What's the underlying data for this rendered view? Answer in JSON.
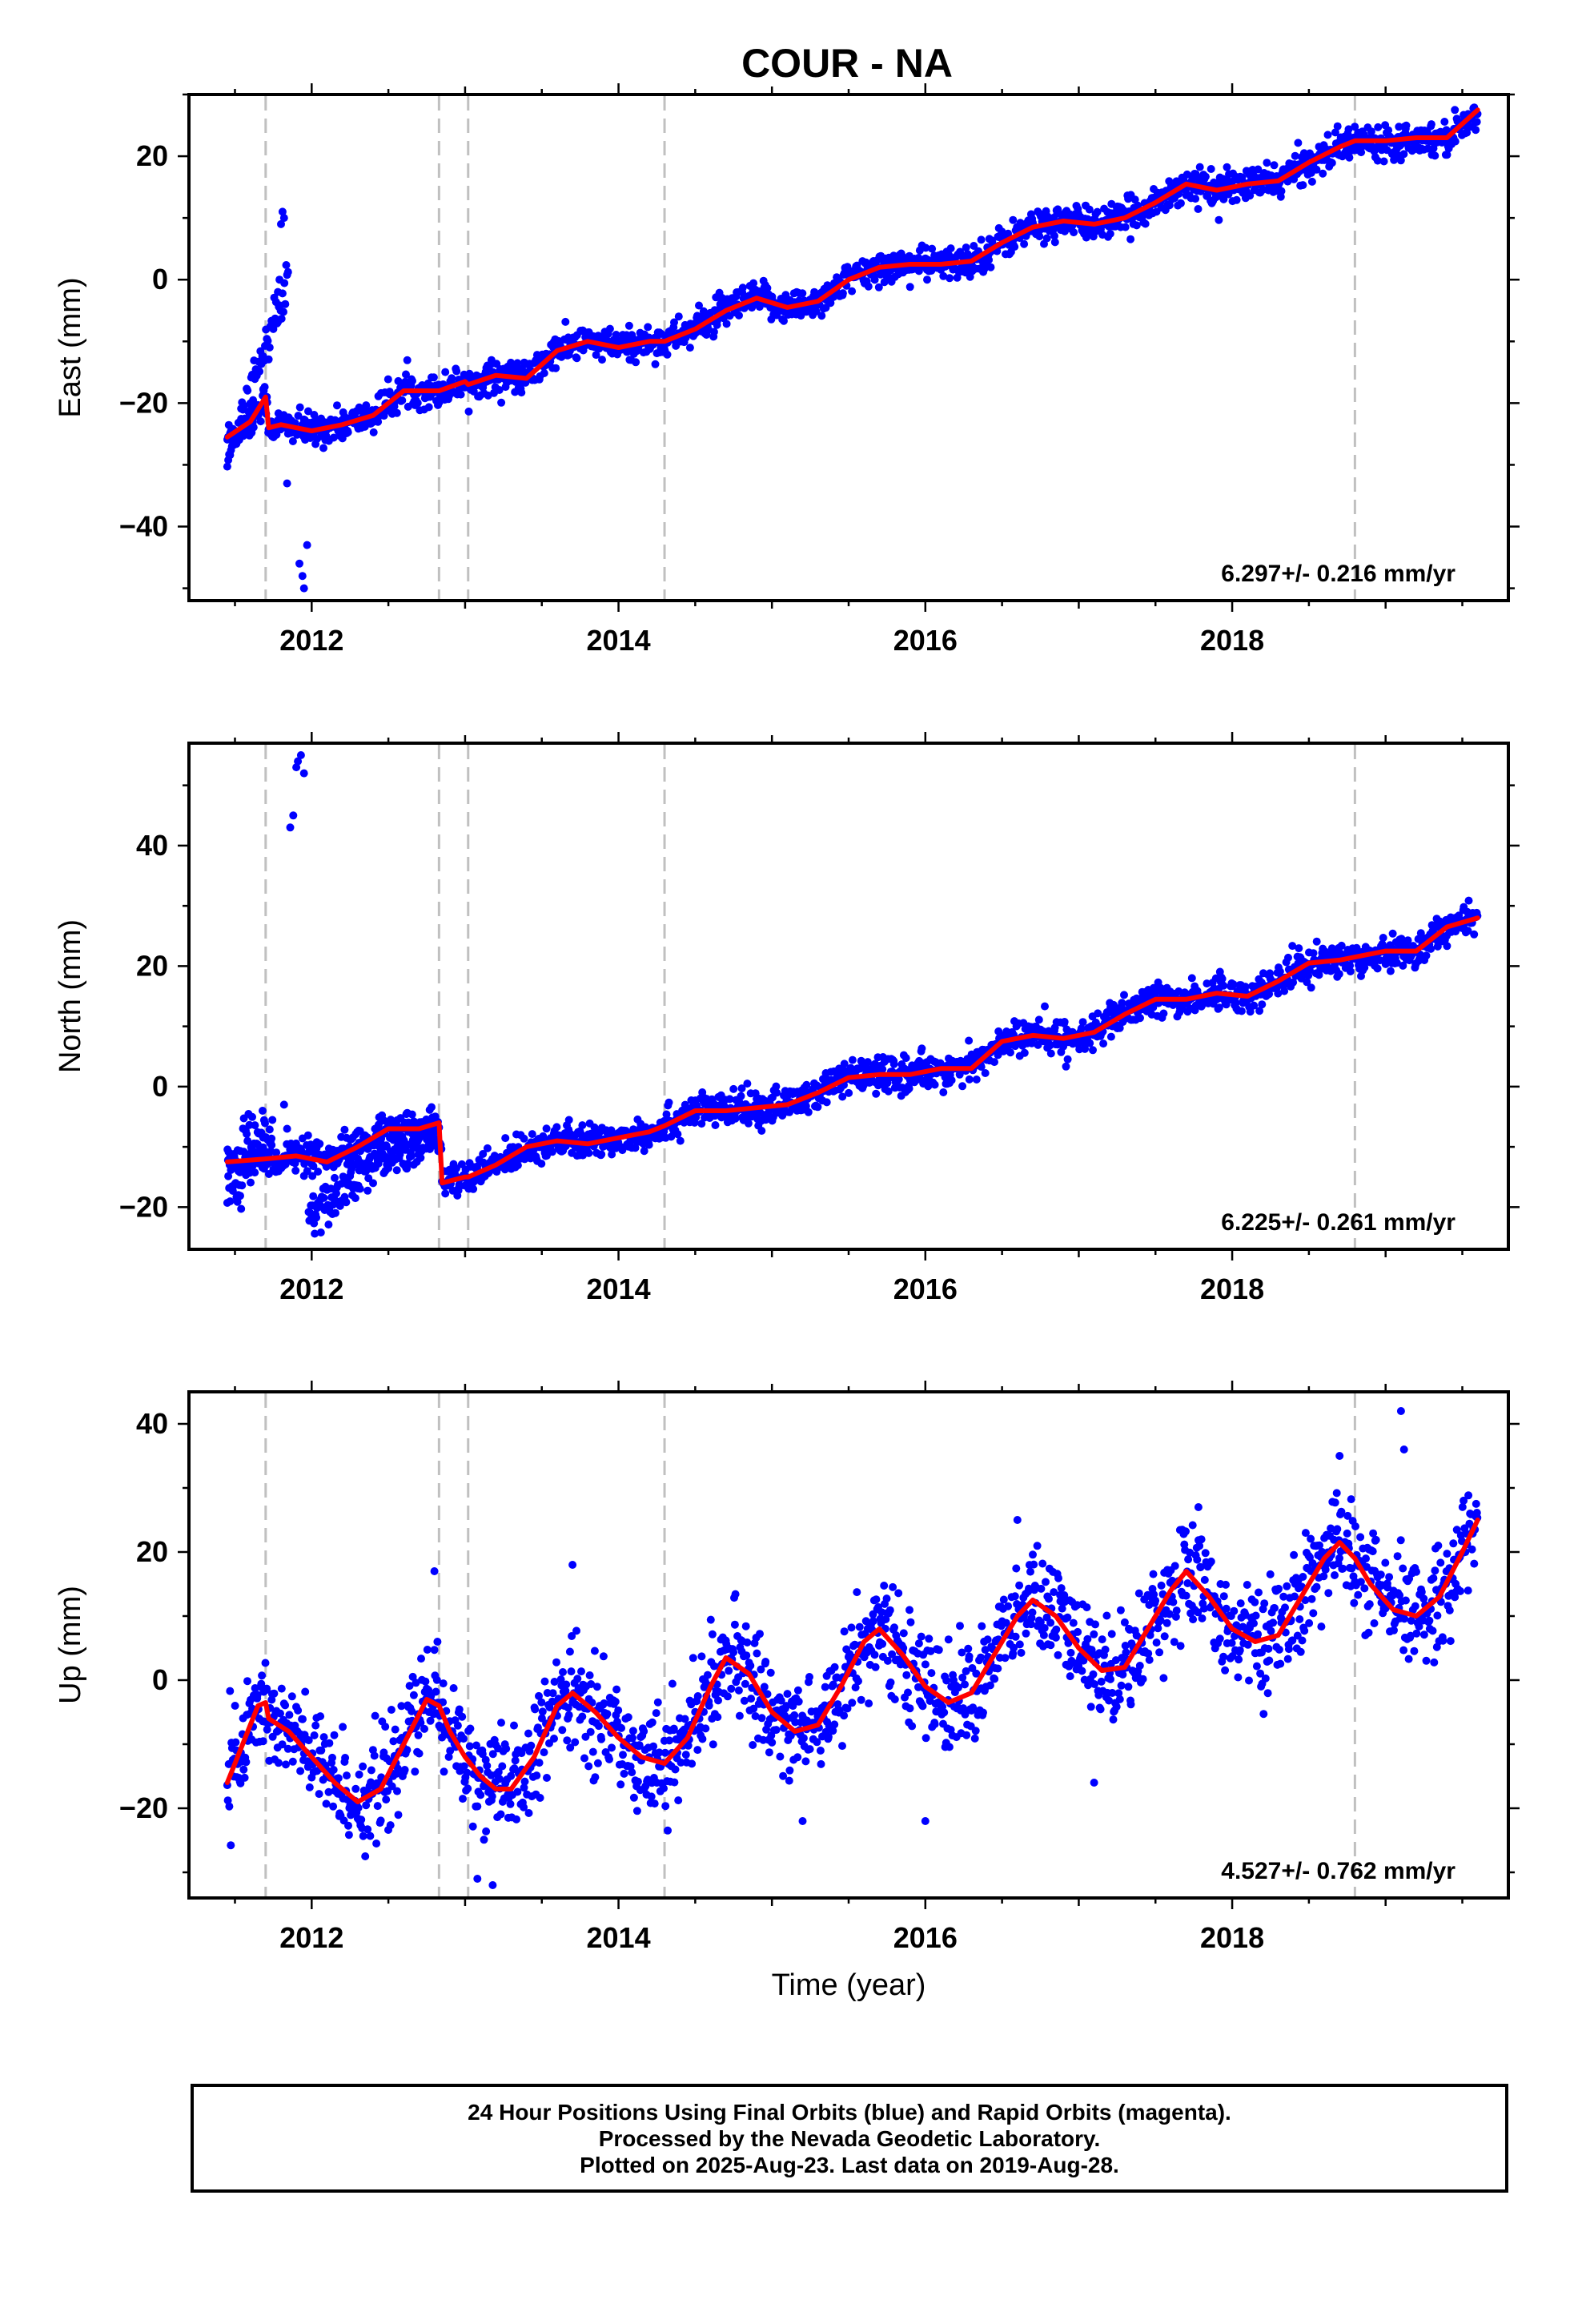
{
  "title": "COUR - NA",
  "xlabel": "Time (year)",
  "footer": {
    "line1": "24 Hour Positions Using Final Orbits (blue) and Rapid Orbits (magenta).",
    "line2": "Processed by the Nevada Geodetic Laboratory.",
    "line3": "Plotted on 2025-Aug-23. Last data on 2019-Aug-28."
  },
  "colors": {
    "data_points": "#0000ff",
    "model_fit": "#ff0000",
    "event_lines": "#c0c0c0",
    "frame": "#000000"
  },
  "chart_data": [
    {
      "type": "scatter",
      "component": "east",
      "ylabel": "East (mm)",
      "rate_label": "6.297+/- 0.216 mm/yr",
      "xlim": [
        2011.2,
        2019.8
      ],
      "ylim": [
        -52,
        30
      ],
      "xticks": [
        2012,
        2014,
        2016,
        2018
      ],
      "yticks": [
        -40,
        -20,
        0,
        20
      ],
      "event_lines_x": [
        2011.7,
        2012.83,
        2013.02,
        2014.3,
        2018.8
      ],
      "model_fit": {
        "x": [
          2011.45,
          2011.6,
          2011.7,
          2011.72,
          2011.8,
          2012.0,
          2012.2,
          2012.4,
          2012.6,
          2012.8,
          2012.83,
          2013.0,
          2013.02,
          2013.2,
          2013.4,
          2013.6,
          2013.8,
          2014.0,
          2014.2,
          2014.3,
          2014.5,
          2014.7,
          2014.9,
          2015.1,
          2015.3,
          2015.5,
          2015.7,
          2015.9,
          2016.1,
          2016.3,
          2016.5,
          2016.7,
          2016.9,
          2017.1,
          2017.3,
          2017.5,
          2017.7,
          2017.9,
          2018.1,
          2018.3,
          2018.5,
          2018.7,
          2018.8,
          2019.0,
          2019.2,
          2019.4,
          2019.6
        ],
        "y": [
          -25.5,
          -23,
          -19,
          -24,
          -23.5,
          -24.5,
          -23.5,
          -22,
          -18,
          -18,
          -18,
          -16.5,
          -17,
          -15.5,
          -16,
          -11.5,
          -10,
          -11,
          -10,
          -10,
          -8,
          -5,
          -3,
          -4.5,
          -3.5,
          0,
          2,
          2.5,
          2.5,
          3,
          6,
          8.5,
          9.5,
          9,
          10,
          12.5,
          15.5,
          14.5,
          15.5,
          16,
          19,
          21.5,
          22.5,
          22.5,
          23,
          23,
          27.5
        ]
      },
      "outliers": {
        "x": [
          2011.78,
          2011.79,
          2011.8,
          2011.81,
          2011.82,
          2011.84,
          2011.92,
          2011.94,
          2011.95,
          2011.97
        ],
        "y": [
          -2,
          0,
          9,
          11,
          10,
          -33,
          -46,
          -48,
          -50,
          -43
        ]
      }
    },
    {
      "type": "scatter",
      "component": "north",
      "ylabel": "North (mm)",
      "rate_label": "6.225+/- 0.261 mm/yr",
      "xlim": [
        2011.2,
        2019.8
      ],
      "ylim": [
        -27,
        57
      ],
      "xticks": [
        2012,
        2014,
        2016,
        2018
      ],
      "yticks": [
        -20,
        0,
        20,
        40
      ],
      "event_lines_x": [
        2011.7,
        2012.83,
        2013.02,
        2014.3,
        2018.8
      ],
      "model_fit": {
        "x": [
          2011.45,
          2011.7,
          2011.9,
          2012.1,
          2012.3,
          2012.5,
          2012.7,
          2012.83,
          2012.85,
          2013.0,
          2013.02,
          2013.2,
          2013.4,
          2013.6,
          2013.8,
          2014.0,
          2014.2,
          2014.3,
          2014.5,
          2014.7,
          2014.9,
          2015.1,
          2015.3,
          2015.5,
          2015.7,
          2015.9,
          2016.1,
          2016.3,
          2016.5,
          2016.7,
          2016.9,
          2017.1,
          2017.3,
          2017.5,
          2017.7,
          2017.9,
          2018.1,
          2018.3,
          2018.5,
          2018.7,
          2018.8,
          2019.0,
          2019.2,
          2019.4,
          2019.6
        ],
        "y": [
          -12.5,
          -12,
          -11.5,
          -12.5,
          -10,
          -7,
          -7,
          -6,
          -16,
          -15,
          -15,
          -13,
          -10,
          -9,
          -9.5,
          -8.5,
          -7.5,
          -6.5,
          -4,
          -4,
          -3.5,
          -3,
          -1,
          1.5,
          2,
          2,
          3,
          3,
          7.5,
          8.5,
          8,
          9,
          12,
          14.5,
          14.5,
          15.5,
          15,
          17.5,
          20.5,
          21,
          21.5,
          22.5,
          22.5,
          26.5,
          28
        ]
      },
      "outliers": {
        "x": [
          2011.68,
          2011.82,
          2011.84,
          2011.86,
          2011.88,
          2011.9,
          2011.91,
          2011.93,
          2011.95
        ],
        "y": [
          -4,
          -3,
          -7,
          43,
          45,
          53,
          54,
          55,
          52
        ]
      }
    },
    {
      "type": "scatter",
      "component": "up",
      "ylabel": "Up (mm)",
      "rate_label": "4.527+/- 0.762 mm/yr",
      "xlim": [
        2011.2,
        2019.8
      ],
      "ylim": [
        -34,
        45
      ],
      "xticks": [
        2012,
        2014,
        2016,
        2018
      ],
      "yticks": [
        -20,
        0,
        20,
        40
      ],
      "event_lines_x": [
        2011.7,
        2012.83,
        2013.02,
        2014.3,
        2018.8
      ],
      "model_fit": {
        "x": [
          2011.45,
          2011.55,
          2011.65,
          2011.7,
          2011.72,
          2011.85,
          2012.0,
          2012.15,
          2012.3,
          2012.45,
          2012.6,
          2012.75,
          2012.83,
          2012.9,
          2013.0,
          2013.1,
          2013.2,
          2013.3,
          2013.45,
          2013.6,
          2013.7,
          2013.85,
          2014.0,
          2014.15,
          2014.3,
          2014.45,
          2014.6,
          2014.7,
          2014.85,
          2015.0,
          2015.15,
          2015.3,
          2015.45,
          2015.6,
          2015.7,
          2015.85,
          2016.0,
          2016.15,
          2016.3,
          2016.45,
          2016.6,
          2016.7,
          2016.85,
          2017.0,
          2017.15,
          2017.3,
          2017.45,
          2017.6,
          2017.7,
          2017.85,
          2018.0,
          2018.15,
          2018.3,
          2018.45,
          2018.6,
          2018.7,
          2018.8,
          2018.9,
          2019.05,
          2019.2,
          2019.35,
          2019.5,
          2019.6
        ],
        "y": [
          -16,
          -10,
          -4,
          -3.5,
          -6,
          -8,
          -12,
          -16,
          -19,
          -17,
          -10,
          -3,
          -4,
          -8,
          -12,
          -15,
          -17,
          -17,
          -12,
          -4,
          -2,
          -5,
          -9,
          -12,
          -13,
          -9,
          -1,
          3.5,
          1,
          -5,
          -8,
          -7,
          -1,
          6,
          8,
          4,
          -1,
          -3.5,
          -2,
          4,
          10,
          12.5,
          10,
          5,
          1.5,
          2,
          8,
          14,
          17,
          13,
          8,
          6,
          7,
          13,
          19,
          21.5,
          19,
          15,
          11,
          10,
          13,
          20,
          25
        ]
      },
      "outliers": {
        "x": [
          2012.8,
          2012.82,
          2013.08,
          2013.18,
          2013.7,
          2015.2,
          2016.0,
          2016.6,
          2017.1,
          2017.78,
          2018.7,
          2019.1,
          2019.12
        ],
        "y": [
          17,
          6,
          -31,
          -32,
          18,
          -22,
          -22,
          25,
          -16,
          27,
          35,
          42,
          36
        ]
      }
    }
  ]
}
